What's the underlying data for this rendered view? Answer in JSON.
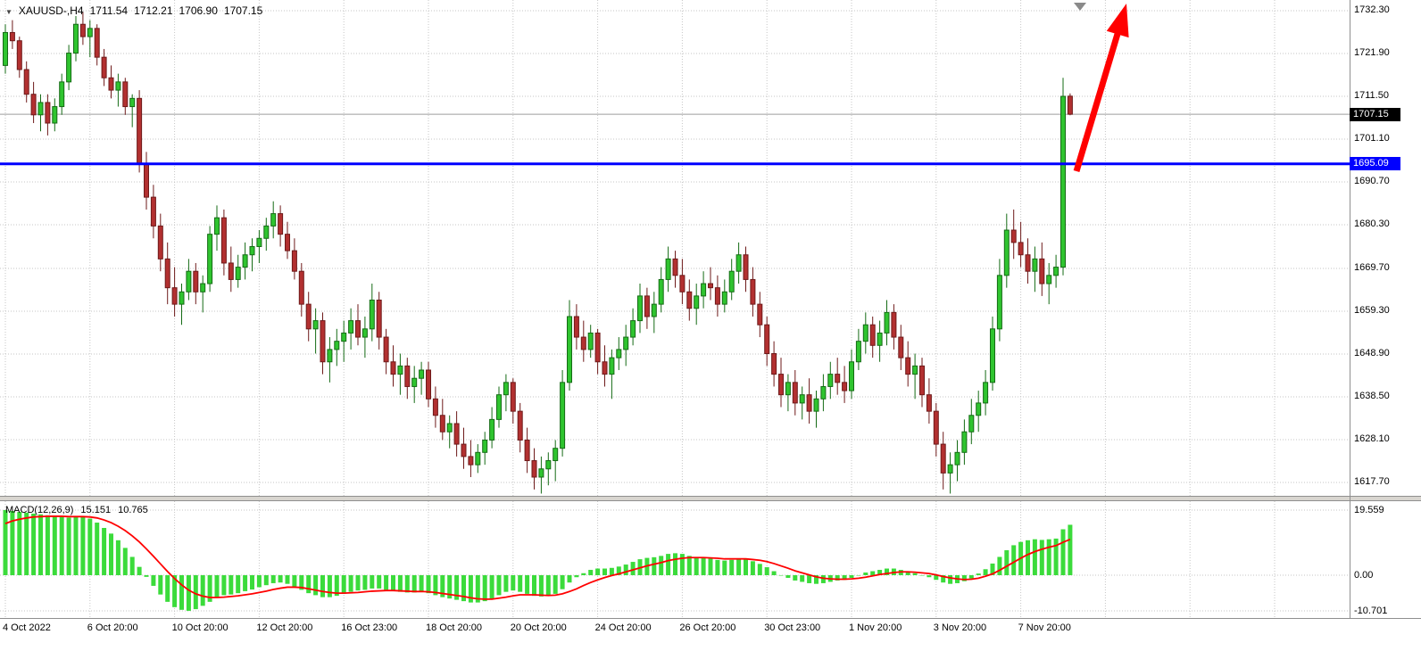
{
  "header": {
    "symbol_period": "XAUUSD-,H4",
    "open": "1711.54",
    "high": "1712.21",
    "low": "1706.90",
    "close": "1707.15"
  },
  "macd_header": {
    "label": "MACD(12,26,9)",
    "main_value": "15.151",
    "signal_value": "10.765"
  },
  "price_axis": {
    "ticks": [
      "1732.30",
      "1721.90",
      "1711.50",
      "1701.10",
      "1690.70",
      "1680.30",
      "1669.70",
      "1659.30",
      "1648.90",
      "1638.50",
      "1628.10",
      "1617.70"
    ],
    "current_price_label": "1707.15",
    "level_label": "1695.09"
  },
  "macd_axis": {
    "ticks": [
      {
        "label": "19.559",
        "value": 19.559
      },
      {
        "label": "0.00",
        "value": 0.0
      },
      {
        "label": "-10.701",
        "value": -10.701
      }
    ]
  },
  "levels": {
    "horizontal_line": 1695.09,
    "current_price": 1707.15
  },
  "colors": {
    "bull": "#2fc42f",
    "bull_border": "#156b15",
    "bear": "#b23030",
    "bear_border": "#6e1a1a",
    "macd_hist": "#3bdb3b",
    "signal": "#ff0000",
    "level_line": "#0000ff",
    "arrow": "#ff0000",
    "grid": "#c6c6c6",
    "current_price_line": "#9e9e9e",
    "price_tag_bg": "#000000",
    "level_tag_bg": "#0000ff"
  },
  "chart_data": {
    "type": "candlestick",
    "title": "XAUUSD-,H4",
    "symbol": "XAUUSD",
    "timeframe": "H4",
    "ylim": [
      1617.7,
      1732.3
    ],
    "grid": "dotted",
    "x_tick_labels": [
      "4 Oct 2022",
      "6 Oct 20:00",
      "10 Oct 20:00",
      "12 Oct 20:00",
      "16 Oct 23:00",
      "18 Oct 20:00",
      "20 Oct 20:00",
      "24 Oct 20:00",
      "26 Oct 20:00",
      "30 Oct 23:00",
      "1 Nov 20:00",
      "3 Nov 20:00",
      "7 Nov 20:00"
    ],
    "x_tick_indices": [
      0,
      12,
      24,
      36,
      48,
      60,
      72,
      84,
      96,
      108,
      120,
      132,
      144
    ],
    "x_extra_gridline_indices": [
      156,
      168,
      180
    ],
    "overlays": {
      "horizontal_support_line": 1695.09,
      "current_price": 1707.15,
      "trend_arrow": "up-right"
    },
    "candles_ohlc": [
      [
        1719,
        1729,
        1717,
        1727
      ],
      [
        1727,
        1730,
        1723,
        1725
      ],
      [
        1725,
        1726,
        1716,
        1718
      ],
      [
        1718,
        1720,
        1710,
        1712
      ],
      [
        1712,
        1715,
        1705,
        1707
      ],
      [
        1707,
        1712,
        1703,
        1710
      ],
      [
        1710,
        1712,
        1702,
        1705
      ],
      [
        1705,
        1711,
        1703,
        1709
      ],
      [
        1709,
        1717,
        1707,
        1715
      ],
      [
        1715,
        1724,
        1713,
        1722
      ],
      [
        1722,
        1731,
        1720,
        1729
      ],
      [
        1729,
        1732,
        1724,
        1726
      ],
      [
        1726,
        1730,
        1721,
        1728
      ],
      [
        1728,
        1729,
        1719,
        1721
      ],
      [
        1721,
        1723,
        1714,
        1716
      ],
      [
        1716,
        1719,
        1711,
        1713
      ],
      [
        1713,
        1717,
        1709,
        1715
      ],
      [
        1715,
        1716,
        1707,
        1709
      ],
      [
        1709,
        1712,
        1704,
        1711
      ],
      [
        1711,
        1713,
        1693,
        1695
      ],
      [
        1695,
        1698,
        1684,
        1687
      ],
      [
        1687,
        1690,
        1677,
        1680
      ],
      [
        1680,
        1683,
        1669,
        1672
      ],
      [
        1672,
        1676,
        1661,
        1665
      ],
      [
        1665,
        1670,
        1658,
        1661
      ],
      [
        1661,
        1666,
        1656,
        1664
      ],
      [
        1664,
        1672,
        1662,
        1669
      ],
      [
        1669,
        1671,
        1661,
        1664
      ],
      [
        1664,
        1668,
        1659,
        1666
      ],
      [
        1666,
        1680,
        1664,
        1678
      ],
      [
        1678,
        1685,
        1674,
        1682
      ],
      [
        1682,
        1684,
        1668,
        1671
      ],
      [
        1671,
        1675,
        1664,
        1667
      ],
      [
        1667,
        1673,
        1665,
        1670
      ],
      [
        1670,
        1676,
        1667,
        1673
      ],
      [
        1673,
        1677,
        1669,
        1675
      ],
      [
        1675,
        1679,
        1671,
        1677
      ],
      [
        1677,
        1682,
        1674,
        1680
      ],
      [
        1680,
        1686,
        1677,
        1683
      ],
      [
        1683,
        1685,
        1675,
        1678
      ],
      [
        1678,
        1681,
        1672,
        1674
      ],
      [
        1674,
        1677,
        1667,
        1669
      ],
      [
        1669,
        1671,
        1658,
        1661
      ],
      [
        1661,
        1664,
        1652,
        1655
      ],
      [
        1655,
        1660,
        1649,
        1657
      ],
      [
        1657,
        1659,
        1644,
        1647
      ],
      [
        1647,
        1653,
        1642,
        1650
      ],
      [
        1650,
        1655,
        1646,
        1652
      ],
      [
        1652,
        1657,
        1647,
        1654
      ],
      [
        1654,
        1660,
        1650,
        1657
      ],
      [
        1657,
        1661,
        1651,
        1653
      ],
      [
        1653,
        1658,
        1648,
        1655
      ],
      [
        1655,
        1666,
        1652,
        1662
      ],
      [
        1662,
        1664,
        1650,
        1653
      ],
      [
        1653,
        1655,
        1644,
        1647
      ],
      [
        1647,
        1651,
        1641,
        1644
      ],
      [
        1644,
        1649,
        1639,
        1646
      ],
      [
        1646,
        1648,
        1638,
        1641
      ],
      [
        1641,
        1646,
        1637,
        1643
      ],
      [
        1643,
        1647,
        1639,
        1645
      ],
      [
        1645,
        1647,
        1636,
        1638
      ],
      [
        1638,
        1641,
        1631,
        1634
      ],
      [
        1634,
        1638,
        1628,
        1630
      ],
      [
        1630,
        1634,
        1626,
        1632
      ],
      [
        1632,
        1635,
        1624,
        1627
      ],
      [
        1627,
        1631,
        1621,
        1624
      ],
      [
        1624,
        1628,
        1619,
        1622
      ],
      [
        1622,
        1627,
        1620,
        1625
      ],
      [
        1625,
        1630,
        1622,
        1628
      ],
      [
        1628,
        1636,
        1626,
        1633
      ],
      [
        1633,
        1641,
        1631,
        1639
      ],
      [
        1639,
        1644,
        1635,
        1642
      ],
      [
        1642,
        1643,
        1632,
        1635
      ],
      [
        1635,
        1637,
        1625,
        1628
      ],
      [
        1628,
        1631,
        1620,
        1623
      ],
      [
        1623,
        1626,
        1616,
        1619
      ],
      [
        1619,
        1624,
        1615,
        1621
      ],
      [
        1621,
        1625,
        1617,
        1623
      ],
      [
        1623,
        1628,
        1618,
        1626
      ],
      [
        1626,
        1645,
        1624,
        1642
      ],
      [
        1642,
        1662,
        1640,
        1658
      ],
      [
        1658,
        1661,
        1650,
        1653
      ],
      [
        1653,
        1657,
        1647,
        1650
      ],
      [
        1650,
        1656,
        1648,
        1654
      ],
      [
        1654,
        1655,
        1644,
        1647
      ],
      [
        1647,
        1651,
        1641,
        1644
      ],
      [
        1644,
        1650,
        1638,
        1648
      ],
      [
        1648,
        1653,
        1645,
        1650
      ],
      [
        1650,
        1656,
        1646,
        1653
      ],
      [
        1653,
        1660,
        1651,
        1657
      ],
      [
        1657,
        1666,
        1654,
        1663
      ],
      [
        1663,
        1665,
        1655,
        1658
      ],
      [
        1658,
        1664,
        1654,
        1661
      ],
      [
        1661,
        1670,
        1659,
        1667
      ],
      [
        1667,
        1675,
        1664,
        1672
      ],
      [
        1672,
        1674,
        1665,
        1668
      ],
      [
        1668,
        1672,
        1661,
        1664
      ],
      [
        1664,
        1667,
        1657,
        1660
      ],
      [
        1660,
        1666,
        1656,
        1663
      ],
      [
        1663,
        1669,
        1660,
        1666
      ],
      [
        1666,
        1670,
        1662,
        1665
      ],
      [
        1665,
        1668,
        1658,
        1661
      ],
      [
        1661,
        1667,
        1659,
        1664
      ],
      [
        1664,
        1672,
        1662,
        1669
      ],
      [
        1669,
        1676,
        1666,
        1673
      ],
      [
        1673,
        1675,
        1664,
        1667
      ],
      [
        1667,
        1670,
        1658,
        1661
      ],
      [
        1661,
        1664,
        1653,
        1656
      ],
      [
        1656,
        1658,
        1646,
        1649
      ],
      [
        1649,
        1652,
        1641,
        1644
      ],
      [
        1644,
        1648,
        1636,
        1639
      ],
      [
        1639,
        1644,
        1635,
        1642
      ],
      [
        1642,
        1645,
        1634,
        1637
      ],
      [
        1637,
        1641,
        1633,
        1639
      ],
      [
        1639,
        1643,
        1632,
        1635
      ],
      [
        1635,
        1640,
        1631,
        1638
      ],
      [
        1638,
        1644,
        1635,
        1641
      ],
      [
        1641,
        1647,
        1638,
        1644
      ],
      [
        1644,
        1648,
        1639,
        1642
      ],
      [
        1642,
        1646,
        1637,
        1640
      ],
      [
        1640,
        1650,
        1638,
        1647
      ],
      [
        1647,
        1655,
        1645,
        1652
      ],
      [
        1652,
        1659,
        1649,
        1656
      ],
      [
        1656,
        1658,
        1648,
        1651
      ],
      [
        1651,
        1657,
        1647,
        1654
      ],
      [
        1654,
        1662,
        1651,
        1659
      ],
      [
        1659,
        1661,
        1650,
        1653
      ],
      [
        1653,
        1656,
        1645,
        1648
      ],
      [
        1648,
        1652,
        1641,
        1644
      ],
      [
        1644,
        1649,
        1638,
        1646
      ],
      [
        1646,
        1648,
        1636,
        1639
      ],
      [
        1639,
        1643,
        1632,
        1635
      ],
      [
        1635,
        1637,
        1624,
        1627
      ],
      [
        1627,
        1630,
        1616,
        1620
      ],
      [
        1620,
        1625,
        1615,
        1622
      ],
      [
        1622,
        1628,
        1618,
        1625
      ],
      [
        1625,
        1633,
        1622,
        1630
      ],
      [
        1630,
        1638,
        1627,
        1634
      ],
      [
        1634,
        1640,
        1630,
        1637
      ],
      [
        1637,
        1645,
        1634,
        1642
      ],
      [
        1642,
        1658,
        1640,
        1655
      ],
      [
        1655,
        1672,
        1652,
        1668
      ],
      [
        1668,
        1683,
        1665,
        1679
      ],
      [
        1679,
        1684,
        1672,
        1676
      ],
      [
        1676,
        1681,
        1670,
        1673
      ],
      [
        1673,
        1677,
        1666,
        1669
      ],
      [
        1669,
        1675,
        1664,
        1672
      ],
      [
        1672,
        1676,
        1663,
        1666
      ],
      [
        1666,
        1671,
        1661,
        1668
      ],
      [
        1668,
        1673,
        1665,
        1670
      ],
      [
        1670,
        1716,
        1668,
        1711.5
      ],
      [
        1711.54,
        1712.21,
        1706.9,
        1707.15
      ]
    ],
    "macd": {
      "label": "MACD(12,26,9)",
      "main_last": 15.151,
      "signal_last": 10.765,
      "ylim": [
        -10.701,
        19.559
      ],
      "histogram": [
        19.559,
        19.3,
        19.0,
        18.8,
        18.5,
        18.3,
        18.0,
        17.8,
        17.5,
        17.3,
        17.6,
        17.8,
        17.0,
        15.8,
        14.2,
        12.5,
        10.5,
        8.2,
        5.5,
        2.5,
        -0.5,
        -3.2,
        -5.8,
        -8.0,
        -9.6,
        -10.4,
        -10.701,
        -10.2,
        -9.2,
        -8.0,
        -6.8,
        -6.0,
        -5.8,
        -5.4,
        -4.8,
        -4.3,
        -3.6,
        -3.0,
        -2.4,
        -2.2,
        -2.6,
        -3.4,
        -4.4,
        -5.4,
        -6.0,
        -6.6,
        -6.6,
        -6.2,
        -5.6,
        -5.0,
        -4.6,
        -4.4,
        -4.0,
        -4.0,
        -4.4,
        -4.8,
        -5.0,
        -5.2,
        -5.2,
        -5.0,
        -5.4,
        -6.0,
        -6.6,
        -7.0,
        -7.4,
        -7.8,
        -8.2,
        -8.2,
        -7.8,
        -7.0,
        -6.0,
        -5.0,
        -4.6,
        -5.0,
        -5.6,
        -6.2,
        -6.4,
        -6.2,
        -5.6,
        -4.2,
        -2.2,
        -0.6,
        0.6,
        1.6,
        2.0,
        2.0,
        2.2,
        2.6,
        3.2,
        4.0,
        4.8,
        5.2,
        5.4,
        5.8,
        6.4,
        6.6,
        6.4,
        5.8,
        5.4,
        5.2,
        5.0,
        4.6,
        4.4,
        4.6,
        5.0,
        4.8,
        4.2,
        3.4,
        2.4,
        1.2,
        0.0,
        -0.8,
        -1.6,
        -2.0,
        -2.4,
        -2.6,
        -2.4,
        -2.0,
        -1.6,
        -1.4,
        -0.8,
        0.0,
        0.8,
        1.2,
        1.6,
        2.0,
        2.0,
        1.6,
        1.0,
        0.6,
        0.0,
        -0.6,
        -1.4,
        -2.2,
        -2.6,
        -2.4,
        -1.8,
        -1.0,
        0.5,
        1.8,
        3.5,
        5.5,
        7.5,
        9.0,
        10.0,
        10.5,
        10.8,
        10.6,
        10.8,
        11.0,
        13.8,
        15.151
      ],
      "signal": [
        15.5,
        16.3,
        16.8,
        17.2,
        17.5,
        17.6,
        17.7,
        17.7,
        17.7,
        17.6,
        17.6,
        17.6,
        17.5,
        17.2,
        16.6,
        15.8,
        14.7,
        13.4,
        11.8,
        10.0,
        7.9,
        5.7,
        3.4,
        1.1,
        -1.0,
        -2.9,
        -4.5,
        -5.6,
        -6.3,
        -6.7,
        -6.7,
        -6.6,
        -6.4,
        -6.2,
        -5.9,
        -5.6,
        -5.2,
        -4.8,
        -4.3,
        -3.9,
        -3.6,
        -3.6,
        -3.7,
        -4.1,
        -4.5,
        -4.9,
        -5.2,
        -5.4,
        -5.4,
        -5.3,
        -5.2,
        -5.0,
        -4.8,
        -4.7,
        -4.6,
        -4.6,
        -4.7,
        -4.8,
        -4.9,
        -4.9,
        -5.0,
        -5.2,
        -5.5,
        -5.8,
        -6.1,
        -6.4,
        -6.8,
        -7.1,
        -7.2,
        -7.2,
        -6.9,
        -6.6,
        -6.2,
        -5.9,
        -5.9,
        -5.9,
        -6.0,
        -6.1,
        -6.0,
        -5.6,
        -4.9,
        -4.1,
        -3.1,
        -2.2,
        -1.4,
        -0.7,
        -0.1,
        0.4,
        1.0,
        1.6,
        2.2,
        2.8,
        3.3,
        3.8,
        4.4,
        4.8,
        5.1,
        5.3,
        5.3,
        5.3,
        5.2,
        5.1,
        4.9,
        4.9,
        4.9,
        4.9,
        4.7,
        4.5,
        4.1,
        3.5,
        2.8,
        2.1,
        1.3,
        0.7,
        0.1,
        -0.5,
        -0.9,
        -1.1,
        -1.2,
        -1.2,
        -1.1,
        -0.9,
        -0.6,
        -0.2,
        0.2,
        0.5,
        0.8,
        1.0,
        1.0,
        0.9,
        0.7,
        0.5,
        0.1,
        -0.4,
        -0.8,
        -1.1,
        -1.3,
        -1.2,
        -0.9,
        -0.3,
        0.4,
        1.5,
        2.7,
        3.9,
        5.1,
        6.2,
        7.1,
        7.8,
        8.4,
        8.9,
        9.9,
        10.765
      ]
    }
  }
}
